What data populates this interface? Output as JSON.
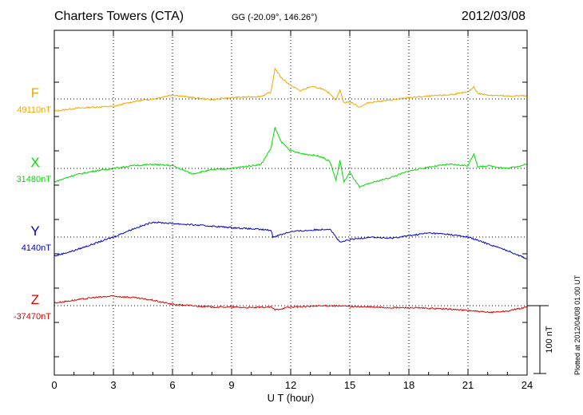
{
  "header": {
    "station": "Charters Towers (CTA)",
    "coords": "GG (-20.09°, 146.26°)",
    "date": "2012/03/08"
  },
  "plotted_note": "Plotted at 2012/04/08 01:00 UT",
  "colors": {
    "F": "#f0a800",
    "X": "#00dd00",
    "Y": "#0000cc",
    "Z": "#dd0000"
  },
  "chart_data": {
    "type": "line",
    "xlabel": "U T (hour)",
    "xlim": [
      0,
      24
    ],
    "xticks": [
      0,
      3,
      6,
      9,
      12,
      15,
      18,
      21,
      24
    ],
    "grid": true,
    "scale_bar_label": "100 nT",
    "scale_bar_nT": 100,
    "series": [
      {
        "name": "F",
        "baseline": "49110nT",
        "baseline_nT": 49110,
        "x": [
          0,
          1,
          2,
          3,
          4,
          5,
          6,
          7,
          8,
          9,
          10,
          10.5,
          11,
          11.2,
          11.5,
          12,
          12.5,
          13,
          13.5,
          14,
          14.3,
          14.5,
          14.7,
          15,
          15.5,
          16,
          17,
          18,
          19,
          20,
          21,
          21.3,
          21.5,
          22,
          23,
          24
        ],
        "y": [
          -18,
          -14,
          -12,
          -11,
          -4,
          0,
          6,
          2,
          -1,
          2,
          3,
          4,
          10,
          45,
          32,
          20,
          12,
          18,
          16,
          8,
          -2,
          14,
          -6,
          -4,
          -12,
          -5,
          -2,
          2,
          4,
          6,
          10,
          18,
          8,
          6,
          4,
          5
        ]
      },
      {
        "name": "X",
        "baseline": "31480nT",
        "baseline_nT": 31480,
        "x": [
          0,
          1,
          2,
          3,
          4,
          5,
          6,
          6.5,
          7,
          8,
          9,
          10,
          10.5,
          11,
          11.2,
          11.5,
          12,
          12.5,
          13,
          13.5,
          14,
          14.3,
          14.5,
          14.7,
          15,
          15.5,
          16,
          17,
          18,
          19,
          20,
          21,
          21.3,
          21.5,
          22,
          23,
          24
        ],
        "y": [
          -20,
          -10,
          -4,
          0,
          4,
          6,
          4,
          -2,
          -8,
          -2,
          0,
          4,
          6,
          30,
          60,
          40,
          26,
          22,
          20,
          18,
          10,
          -18,
          12,
          -20,
          -6,
          -28,
          -22,
          -14,
          -4,
          2,
          6,
          4,
          22,
          2,
          4,
          0,
          6
        ]
      },
      {
        "name": "Y",
        "baseline": "4140nT",
        "baseline_nT": 4140,
        "x": [
          0,
          1,
          2,
          3,
          4,
          5,
          6,
          7,
          8,
          9,
          10,
          11,
          11.1,
          12,
          13,
          14,
          14.5,
          15,
          16,
          17,
          18,
          19,
          20,
          21,
          22,
          23,
          24
        ],
        "y": [
          -28,
          -20,
          -10,
          0,
          12,
          22,
          20,
          18,
          16,
          14,
          12,
          10,
          0,
          8,
          10,
          12,
          -8,
          -4,
          0,
          -2,
          2,
          6,
          4,
          0,
          -10,
          -20,
          -32
        ]
      },
      {
        "name": "Z",
        "baseline": "-37470nT",
        "baseline_nT": -37470,
        "x": [
          0,
          1,
          2,
          3,
          4,
          5,
          6,
          7,
          8,
          9,
          10,
          11,
          11.2,
          12,
          13,
          14,
          15,
          16,
          17,
          18,
          19,
          20,
          21,
          22,
          23,
          24
        ],
        "y": [
          4,
          8,
          12,
          14,
          12,
          8,
          2,
          0,
          -2,
          -2,
          -3,
          -2,
          -6,
          -2,
          -1,
          0,
          -1,
          -2,
          -3,
          -3,
          -4,
          -5,
          -7,
          -10,
          -8,
          -2
        ]
      }
    ]
  }
}
